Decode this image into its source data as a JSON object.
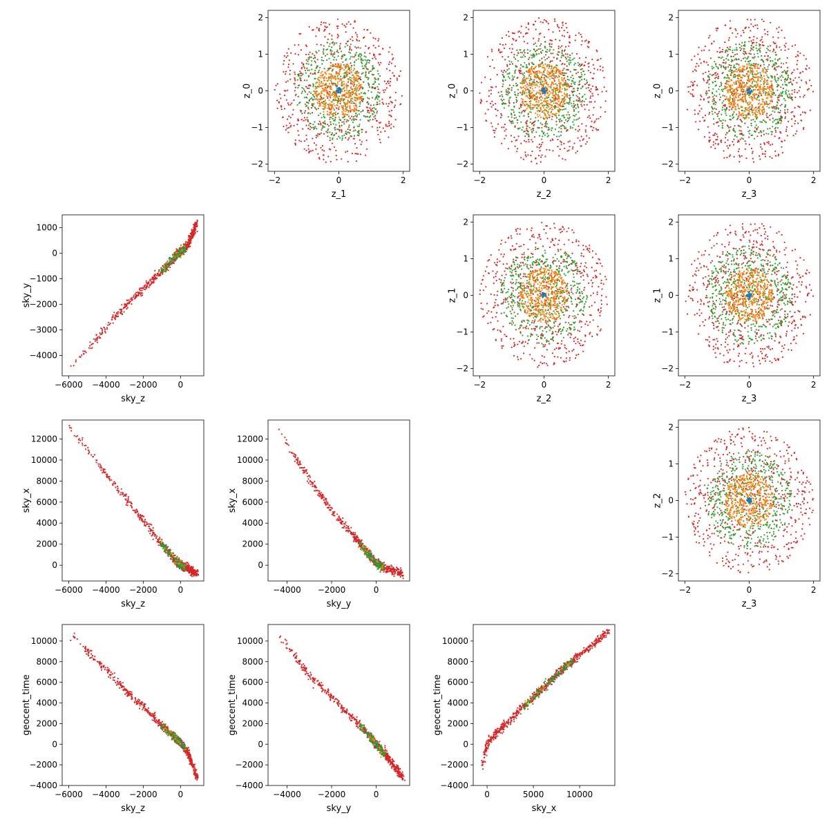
{
  "colors": {
    "series_1": "#1f77b4",
    "series_2": "#ff7f0e",
    "series_3": "#2ca02c",
    "series_4": "#d62728"
  },
  "chart_data": [
    {
      "type": "scatter",
      "row": 0,
      "col": 1,
      "xlabel": "z_1",
      "ylabel": "z_0",
      "xlim": [
        -2.2,
        2.2
      ],
      "ylim": [
        -2.2,
        2.2
      ],
      "xticks": [
        -2,
        0,
        2
      ],
      "yticks": [
        -2,
        -1,
        0,
        1,
        2
      ],
      "pattern": "rings",
      "radii": [
        0.08,
        0.75,
        1.35,
        2.0
      ]
    },
    {
      "type": "scatter",
      "row": 0,
      "col": 2,
      "xlabel": "z_2",
      "ylabel": "z_0",
      "xlim": [
        -2.2,
        2.2
      ],
      "ylim": [
        -2.2,
        2.2
      ],
      "xticks": [
        -2,
        0,
        2
      ],
      "yticks": [
        -2,
        -1,
        0,
        1,
        2
      ],
      "pattern": "rings",
      "radii": [
        0.08,
        0.75,
        1.35,
        2.0
      ]
    },
    {
      "type": "scatter",
      "row": 0,
      "col": 3,
      "xlabel": "z_3",
      "ylabel": "z_0",
      "xlim": [
        -2.2,
        2.2
      ],
      "ylim": [
        -2.2,
        2.2
      ],
      "xticks": [
        -2,
        0,
        2
      ],
      "yticks": [
        -2,
        -1,
        0,
        1,
        2
      ],
      "pattern": "rings",
      "radii": [
        0.08,
        0.75,
        1.35,
        2.0
      ]
    },
    {
      "type": "scatter",
      "row": 1,
      "col": 0,
      "xlabel": "sky_z",
      "ylabel": "sky_y",
      "xlim": [
        -6350,
        1250
      ],
      "ylim": [
        -4800,
        1500
      ],
      "xticks": [
        -6000,
        -4000,
        -2000,
        0
      ],
      "yticks": [
        -4000,
        -3000,
        -2000,
        -1000,
        0,
        1000
      ],
      "pattern": "curve",
      "curve": [
        [
          -6000,
          -4500
        ],
        [
          -5000,
          -3800
        ],
        [
          -4000,
          -2900
        ],
        [
          -3000,
          -2100
        ],
        [
          -2000,
          -1400
        ],
        [
          -1000,
          -700
        ],
        [
          -300,
          -150
        ],
        [
          0,
          50
        ],
        [
          400,
          300
        ],
        [
          900,
          1250
        ]
      ]
    },
    {
      "type": "scatter",
      "row": 1,
      "col": 2,
      "xlabel": "z_2",
      "ylabel": "z_1",
      "xlim": [
        -2.2,
        2.2
      ],
      "ylim": [
        -2.2,
        2.2
      ],
      "xticks": [
        -2,
        0,
        2
      ],
      "yticks": [
        -2,
        -1,
        0,
        1,
        2
      ],
      "pattern": "rings",
      "radii": [
        0.08,
        0.75,
        1.35,
        2.0
      ]
    },
    {
      "type": "scatter",
      "row": 1,
      "col": 3,
      "xlabel": "z_3",
      "ylabel": "z_1",
      "xlim": [
        -2.2,
        2.2
      ],
      "ylim": [
        -2.2,
        2.2
      ],
      "xticks": [
        -2,
        0,
        2
      ],
      "yticks": [
        -2,
        -1,
        0,
        1,
        2
      ],
      "pattern": "rings",
      "radii": [
        0.08,
        0.75,
        1.35,
        2.0
      ]
    },
    {
      "type": "scatter",
      "row": 2,
      "col": 0,
      "xlabel": "sky_z",
      "ylabel": "sky_x",
      "xlim": [
        -6350,
        1250
      ],
      "ylim": [
        -1500,
        13800
      ],
      "xticks": [
        -6000,
        -4000,
        -2000,
        0
      ],
      "yticks": [
        0,
        2000,
        4000,
        6000,
        8000,
        10000,
        12000
      ],
      "pattern": "curve",
      "curve": [
        [
          -6000,
          13200
        ],
        [
          -5000,
          11000
        ],
        [
          -4000,
          8700
        ],
        [
          -3000,
          6500
        ],
        [
          -2000,
          4300
        ],
        [
          -1000,
          2000
        ],
        [
          -300,
          500
        ],
        [
          0,
          0
        ],
        [
          400,
          -300
        ],
        [
          900,
          -800
        ]
      ]
    },
    {
      "type": "scatter",
      "row": 2,
      "col": 1,
      "xlabel": "sky_y",
      "ylabel": "sky_x",
      "xlim": [
        -4850,
        1500
      ],
      "ylim": [
        -1500,
        13800
      ],
      "xticks": [
        -4000,
        -2000,
        0
      ],
      "yticks": [
        0,
        2000,
        4000,
        6000,
        8000,
        10000,
        12000
      ],
      "pattern": "curve",
      "curve": [
        [
          -4500,
          13200
        ],
        [
          -3700,
          10500
        ],
        [
          -3000,
          8200
        ],
        [
          -2000,
          5200
        ],
        [
          -1000,
          2800
        ],
        [
          -400,
          1200
        ],
        [
          0,
          200
        ],
        [
          400,
          -300
        ],
        [
          1200,
          -800
        ]
      ]
    },
    {
      "type": "scatter",
      "row": 2,
      "col": 3,
      "xlabel": "z_3",
      "ylabel": "z_2",
      "xlim": [
        -2.2,
        2.2
      ],
      "ylim": [
        -2.2,
        2.2
      ],
      "xticks": [
        -2,
        0,
        2
      ],
      "yticks": [
        -2,
        -1,
        0,
        1,
        2
      ],
      "pattern": "rings",
      "radii": [
        0.08,
        0.75,
        1.35,
        2.0
      ]
    },
    {
      "type": "scatter",
      "row": 3,
      "col": 0,
      "xlabel": "sky_z",
      "ylabel": "geocent_time",
      "xlim": [
        -6350,
        1250
      ],
      "ylim": [
        -4000,
        11600
      ],
      "xticks": [
        -6000,
        -4000,
        -2000,
        0
      ],
      "yticks": [
        -4000,
        -2000,
        0,
        2000,
        4000,
        6000,
        8000,
        10000
      ],
      "pattern": "curve",
      "curve": [
        [
          -6000,
          11000
        ],
        [
          -5000,
          9000
        ],
        [
          -4000,
          7200
        ],
        [
          -3000,
          5300
        ],
        [
          -2000,
          3600
        ],
        [
          -1000,
          1800
        ],
        [
          -300,
          700
        ],
        [
          0,
          100
        ],
        [
          400,
          -800
        ],
        [
          900,
          -3300
        ]
      ]
    },
    {
      "type": "scatter",
      "row": 3,
      "col": 1,
      "xlabel": "sky_y",
      "ylabel": "geocent_time",
      "xlim": [
        -4850,
        1500
      ],
      "ylim": [
        -4000,
        11600
      ],
      "xticks": [
        -4000,
        -2000,
        0
      ],
      "yticks": [
        -4000,
        -2000,
        0,
        2000,
        4000,
        6000,
        8000,
        10000
      ],
      "pattern": "curve",
      "curve": [
        [
          -4500,
          11000
        ],
        [
          -3700,
          8600
        ],
        [
          -3000,
          6800
        ],
        [
          -2000,
          4600
        ],
        [
          -1000,
          2400
        ],
        [
          -300,
          800
        ],
        [
          0,
          0
        ],
        [
          500,
          -1200
        ],
        [
          1200,
          -3300
        ]
      ]
    },
    {
      "type": "scatter",
      "row": 3,
      "col": 2,
      "xlabel": "sky_x",
      "ylabel": "geocent_time",
      "xlim": [
        -1500,
        13800
      ],
      "ylim": [
        -4000,
        11600
      ],
      "xticks": [
        0,
        5000,
        10000
      ],
      "yticks": [
        -4000,
        -2000,
        0,
        2000,
        4000,
        6000,
        8000,
        10000
      ],
      "pattern": "curve",
      "curve": [
        [
          -800,
          -3300
        ],
        [
          -300,
          -1000
        ],
        [
          0,
          0
        ],
        [
          800,
          900
        ],
        [
          2000,
          1900
        ],
        [
          4000,
          3700
        ],
        [
          6000,
          5400
        ],
        [
          8000,
          7200
        ],
        [
          10000,
          8600
        ],
        [
          13200,
          11000
        ]
      ]
    }
  ]
}
